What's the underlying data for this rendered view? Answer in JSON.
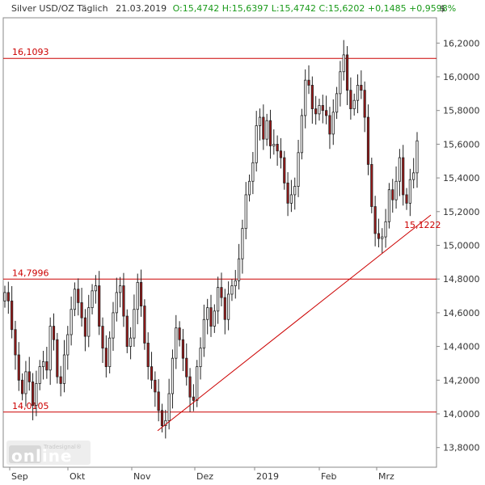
{
  "header": {
    "instrument": "Silver USD/OZ Täglich",
    "date": "21.03.2019",
    "ohlc": "O:15,4742 H:15,6397 L:15,4742 C:15,6202 +0,1485 +0,9598%"
  },
  "currency_symbol": "$",
  "logo": {
    "brand": "online",
    "sub": "Tradesignal®"
  },
  "colors": {
    "up_fill": "#ffffff",
    "down_fill": "#a01818",
    "outline": "#222222",
    "level_line": "#cc0000",
    "level_text": "#cc0000",
    "axis": "#888888",
    "header_green": "#1a9a1a"
  },
  "chart_data": {
    "type": "candlestick",
    "y_axis": {
      "min": 13.7,
      "max": 16.3,
      "ticks": [
        "16,2000",
        "16,0000",
        "15,8000",
        "15,6000",
        "15,4000",
        "15,2000",
        "15,0000",
        "14,8000",
        "14,6000",
        "14,4000",
        "14,2000",
        "14,0000",
        "13,8000"
      ],
      "side": "right"
    },
    "x_axis": {
      "labels": [
        "Sep",
        "Okt",
        "Nov",
        "Dez",
        "2019",
        "Feb",
        "Mrz"
      ]
    },
    "horizontal_levels": [
      {
        "label": "16,1093",
        "value": 16.1093
      },
      {
        "label": "14,7996",
        "value": 14.7996
      },
      {
        "label": "14,0105",
        "value": 14.0105
      }
    ],
    "trendline": {
      "label": "15,1222",
      "start_value": 13.9,
      "end_value": 15.18
    },
    "close_series": [
      14.72,
      14.67,
      14.5,
      14.35,
      14.2,
      14.12,
      14.25,
      14.19,
      14.05,
      14.18,
      14.28,
      14.31,
      14.26,
      14.52,
      14.44,
      14.22,
      14.18,
      14.35,
      14.47,
      14.62,
      14.74,
      14.66,
      14.57,
      14.46,
      14.63,
      14.73,
      14.76,
      14.52,
      14.39,
      14.28,
      14.45,
      14.6,
      14.72,
      14.76,
      14.58,
      14.4,
      14.45,
      14.62,
      14.78,
      14.64,
      14.42,
      14.28,
      14.2,
      14.13,
      14.02,
      13.93,
      13.96,
      14.12,
      14.33,
      14.51,
      14.44,
      14.33,
      14.22,
      14.1,
      14.08,
      14.28,
      14.39,
      14.56,
      14.63,
      14.52,
      14.61,
      14.75,
      14.69,
      14.56,
      14.71,
      14.76,
      14.79,
      14.92,
      15.1,
      15.3,
      15.38,
      15.49,
      15.71,
      15.76,
      15.63,
      15.74,
      15.59,
      15.6,
      15.56,
      15.52,
      15.37,
      15.25,
      15.3,
      15.35,
      15.55,
      15.77,
      15.98,
      15.95,
      15.81,
      15.78,
      15.83,
      15.8,
      15.77,
      15.66,
      15.79,
      15.9,
      16.03,
      16.13,
      15.92,
      15.81,
      15.86,
      15.95,
      15.92,
      15.76,
      15.48,
      15.23,
      15.07,
      15.04,
      15.05,
      15.14,
      15.33,
      15.27,
      15.38,
      15.52,
      15.3,
      15.25,
      15.39,
      15.43,
      15.62
    ]
  }
}
